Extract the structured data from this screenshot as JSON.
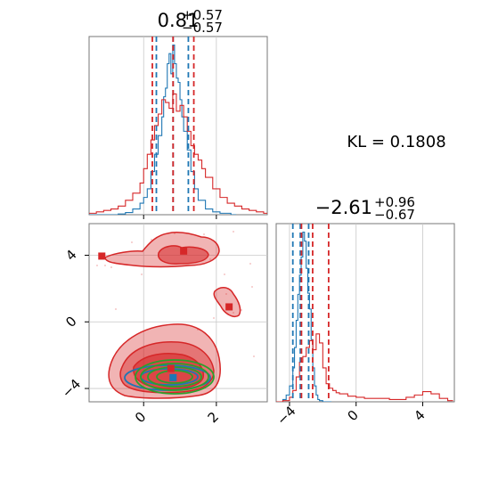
{
  "colors": {
    "red": "#d62728",
    "blue": "#1f77b4",
    "green": "#2ca02c",
    "grid": "#c8c8c8",
    "frame": "#777777"
  },
  "kl_text": "KL = 0.1808",
  "chart_data": [
    {
      "type": "line",
      "panel": "top-left histogram (parameter 1)",
      "title": {
        "median": "0.81",
        "plus": "+0.57",
        "minus": "−0.57"
      },
      "xlim": [
        -1.5,
        3.4
      ],
      "xgrid": [
        0,
        2
      ],
      "series": [
        {
          "color": "#1f77b4",
          "style": "step",
          "x": [
            -1.5,
            -1.3,
            -1.1,
            -0.9,
            -0.7,
            -0.5,
            -0.3,
            -0.1,
            0.0,
            0.1,
            0.2,
            0.3,
            0.4,
            0.5,
            0.55,
            0.6,
            0.65,
            0.7,
            0.75,
            0.8,
            0.85,
            0.9,
            0.95,
            1.0,
            1.05,
            1.1,
            1.2,
            1.3,
            1.4,
            1.5,
            1.7,
            1.9,
            2.1,
            2.4
          ],
          "values": [
            0,
            0,
            0,
            0,
            0.5,
            1.5,
            4,
            8,
            12,
            18,
            30,
            42,
            55,
            68,
            82,
            88,
            105,
            112,
            98,
            118,
            105,
            95,
            92,
            80,
            68,
            58,
            45,
            30,
            18,
            10,
            4,
            2,
            1,
            0
          ]
        },
        {
          "color": "#d62728",
          "style": "step",
          "x": [
            -1.5,
            -1.3,
            -1.1,
            -0.9,
            -0.7,
            -0.5,
            -0.3,
            -0.1,
            0.0,
            0.1,
            0.2,
            0.3,
            0.4,
            0.5,
            0.6,
            0.7,
            0.8,
            0.9,
            1.0,
            1.1,
            1.2,
            1.3,
            1.4,
            1.5,
            1.6,
            1.7,
            1.9,
            2.1,
            2.3,
            2.5,
            2.7,
            2.9,
            3.1,
            3.3
          ],
          "values": [
            1,
            2,
            3,
            4,
            6,
            10,
            15,
            22,
            32,
            42,
            52,
            62,
            70,
            80,
            78,
            74,
            84,
            72,
            76,
            68,
            58,
            48,
            42,
            38,
            32,
            26,
            18,
            12,
            8,
            6,
            4,
            3,
            2,
            1
          ]
        }
      ],
      "quantile_lines": [
        {
          "color": "#1f77b4",
          "x": [
            0.35,
            0.81,
            1.23
          ]
        },
        {
          "color": "#d62728",
          "x": [
            0.24,
            0.81,
            1.38
          ]
        }
      ]
    },
    {
      "type": "scatter",
      "panel": "bottom-left 2D contours",
      "xlim": [
        -1.5,
        3.4
      ],
      "ylim": [
        -4.8,
        5.9
      ],
      "xticks": [
        "0",
        "2"
      ],
      "yticks": [
        "−4",
        "0",
        "4"
      ],
      "xtick_values": [
        0,
        2
      ],
      "ytick_values": [
        -4,
        0,
        4
      ],
      "markers": [
        {
          "color": "#d62728",
          "x": -1.15,
          "y": 3.95
        },
        {
          "color": "#d62728",
          "x": 1.1,
          "y": 4.25
        },
        {
          "color": "#d62728",
          "x": 2.35,
          "y": 0.9
        },
        {
          "color": "#d62728",
          "x": 0.75,
          "y": -2.8
        },
        {
          "color": "#1f77b4",
          "x": 0.81,
          "y": -3.35
        }
      ],
      "contour_series": [
        "#d62728",
        "#1f77b4",
        "#2ca02c"
      ]
    },
    {
      "type": "line",
      "panel": "bottom-right histogram (parameter 2)",
      "title": {
        "median": "−2.61",
        "plus": "+0.96",
        "minus": "−0.67"
      },
      "xlim": [
        -4.8,
        5.9
      ],
      "xticks": [
        "−4",
        "0",
        "4"
      ],
      "xtick_values": [
        -4,
        0,
        4
      ],
      "series": [
        {
          "color": "#1f77b4",
          "style": "step",
          "x": [
            -4.8,
            -4.6,
            -4.4,
            -4.2,
            -4.0,
            -3.8,
            -3.7,
            -3.6,
            -3.5,
            -3.4,
            -3.3,
            -3.2,
            -3.1,
            -3.0,
            -2.9,
            -2.8,
            -2.7,
            -2.6,
            -2.5,
            -2.4,
            -2.3,
            -2.2,
            -2.0,
            -1.8
          ],
          "values": [
            0,
            0,
            2,
            6,
            14,
            30,
            48,
            72,
            95,
            112,
            128,
            150,
            142,
            118,
            96,
            82,
            55,
            30,
            14,
            6,
            2,
            1,
            0,
            0
          ]
        },
        {
          "color": "#d62728",
          "style": "step",
          "x": [
            -4.8,
            -4.4,
            -4.0,
            -3.8,
            -3.6,
            -3.4,
            -3.2,
            -3.0,
            -2.8,
            -2.6,
            -2.4,
            -2.2,
            -2.0,
            -1.8,
            -1.6,
            -1.4,
            -1.2,
            -1.0,
            -0.5,
            0.0,
            0.5,
            1.0,
            2.0,
            3.0,
            3.5,
            4.0,
            4.5,
            5.0,
            5.5
          ],
          "values": [
            0,
            1,
            4,
            10,
            22,
            35,
            40,
            48,
            54,
            46,
            60,
            52,
            30,
            16,
            12,
            10,
            8,
            7,
            5,
            4,
            3,
            3,
            2,
            4,
            6,
            9,
            7,
            3,
            1
          ]
        }
      ],
      "quantile_lines": [
        {
          "color": "#1f77b4",
          "x": [
            -3.8,
            -3.35,
            -2.85
          ]
        },
        {
          "color": "#d62728",
          "x": [
            -3.28,
            -2.61,
            -1.65
          ]
        }
      ]
    }
  ]
}
